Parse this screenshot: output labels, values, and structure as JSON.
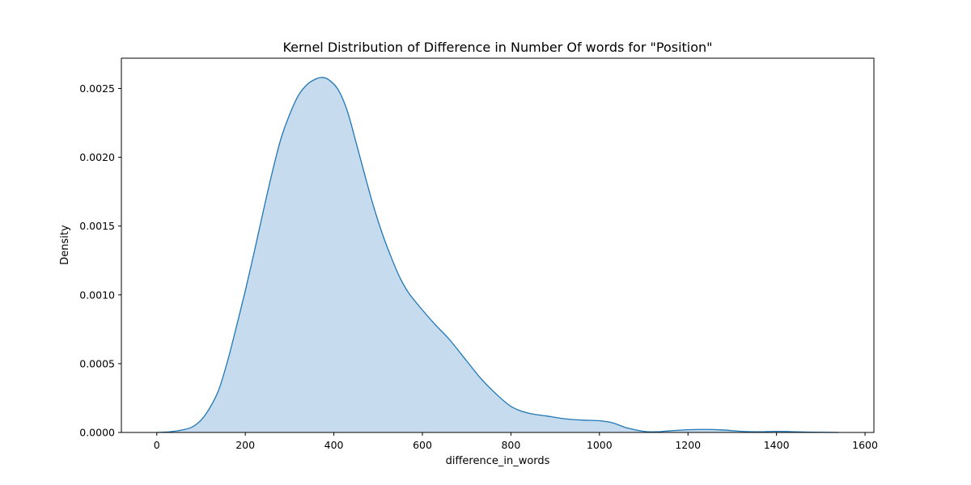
{
  "chart_data": {
    "type": "area",
    "title": "Kernel Distribution of Difference in Number Of words for \"Position\"",
    "xlabel": "difference_in_words",
    "ylabel": "Density",
    "xlim": [
      -80,
      1620
    ],
    "ylim": [
      0,
      0.00272
    ],
    "x_ticks": [
      0,
      200,
      400,
      600,
      800,
      1000,
      1200,
      1400,
      1600
    ],
    "y_ticks": [
      0.0,
      0.0005,
      0.001,
      0.0015,
      0.002,
      0.0025
    ],
    "y_tick_labels": [
      "0.0000",
      "0.0005",
      "0.0010",
      "0.0015",
      "0.0020",
      "0.0025"
    ],
    "grid": false,
    "legend": "none",
    "colors": {
      "line": "#1f77b4",
      "fill": "#c6dbed"
    },
    "series": [
      {
        "x": [
          0,
          30,
          60,
          80,
          100,
          120,
          140,
          160,
          180,
          200,
          220,
          240,
          260,
          280,
          300,
          320,
          340,
          360,
          375,
          390,
          410,
          430,
          450,
          470,
          490,
          510,
          530,
          550,
          570,
          600,
          630,
          660,
          700,
          730,
          760,
          800,
          840,
          880,
          920,
          960,
          1000,
          1030,
          1060,
          1100,
          1130,
          1160,
          1200,
          1240,
          1280,
          1320,
          1360,
          1400,
          1440,
          1480,
          1540
        ],
        "y": [
          0.0,
          5e-06,
          2e-05,
          4e-05,
          9e-05,
          0.00018,
          0.00031,
          0.00052,
          0.00077,
          0.00103,
          0.00131,
          0.0016,
          0.00188,
          0.00213,
          0.00231,
          0.00245,
          0.00253,
          0.00257,
          0.00258,
          0.00256,
          0.00249,
          0.00234,
          0.00211,
          0.00187,
          0.00164,
          0.00144,
          0.00127,
          0.00112,
          0.00101,
          0.00089,
          0.00078,
          0.00068,
          0.00052,
          0.0004,
          0.0003,
          0.00019,
          0.00014,
          0.00012,
          0.0001,
          9e-05,
          8.5e-05,
          7e-05,
          3.5e-05,
          8e-06,
          5e-06,
          1.2e-05,
          2e-05,
          2.2e-05,
          1.8e-05,
          8e-06,
          5e-06,
          8e-06,
          5e-06,
          2e-06,
          0.0
        ]
      }
    ]
  }
}
